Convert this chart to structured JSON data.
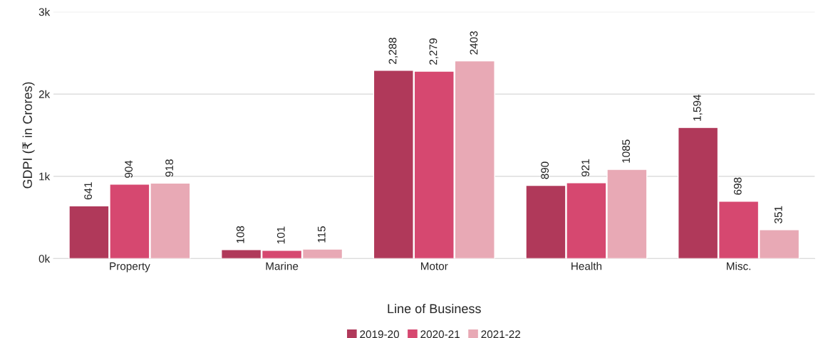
{
  "chart_data": {
    "type": "bar",
    "xlabel": "Line of Business",
    "ylabel": "GDPI (₹ in Crores)",
    "categories": [
      "Property",
      "Marine",
      "Motor",
      "Health",
      "Misc."
    ],
    "series": [
      {
        "name": "2019-20",
        "color": "#b0395a",
        "values": [
          641,
          108,
          2288,
          890,
          1594
        ],
        "value_labels": [
          "641",
          "108",
          "2,288",
          "890",
          "1,594"
        ]
      },
      {
        "name": "2020-21",
        "color": "#d64870",
        "values": [
          904,
          101,
          2279,
          921,
          698
        ],
        "value_labels": [
          "904",
          "101",
          "2,279",
          "921",
          "698"
        ]
      },
      {
        "name": "2021-22",
        "color": "#e8a9b5",
        "values": [
          918,
          115,
          2403,
          1085,
          351
        ],
        "value_labels": [
          "918",
          "115",
          "2403",
          "1085",
          "351"
        ]
      }
    ],
    "ylim": [
      0,
      3000
    ],
    "yticks": [
      {
        "value": 0,
        "label": "0k"
      },
      {
        "value": 1000,
        "label": "1k"
      },
      {
        "value": 2000,
        "label": "2k"
      },
      {
        "value": 3000,
        "label": "3k"
      }
    ],
    "grid": "y",
    "legend": "bottom"
  }
}
